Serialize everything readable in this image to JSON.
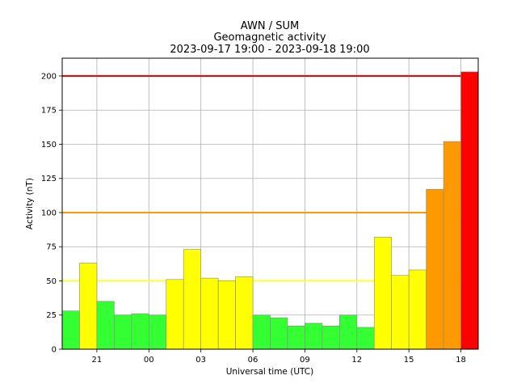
{
  "chart_data": {
    "type": "bar",
    "title_lines": [
      "AWN / SUM",
      "Geomagnetic activity",
      "2023-09-17 19:00 - 2023-09-18 19:00"
    ],
    "xlabel": "Universal time (UTC)",
    "ylabel": "Activity (nT)",
    "ylim": [
      0,
      213
    ],
    "xlim": [
      0,
      24
    ],
    "grid": true,
    "x_ticks": [
      {
        "pos": 2,
        "label": "21"
      },
      {
        "pos": 5,
        "label": "00"
      },
      {
        "pos": 8,
        "label": "03"
      },
      {
        "pos": 11,
        "label": "06"
      },
      {
        "pos": 14,
        "label": "09"
      },
      {
        "pos": 17,
        "label": "12"
      },
      {
        "pos": 20,
        "label": "15"
      },
      {
        "pos": 23,
        "label": "18"
      }
    ],
    "y_ticks": [
      0,
      25,
      50,
      75,
      100,
      125,
      150,
      175,
      200
    ],
    "values": [
      28,
      63,
      35,
      25,
      26,
      25,
      51,
      73,
      52,
      50,
      53,
      25,
      23,
      17,
      19,
      17,
      25,
      16,
      82,
      54,
      58,
      117,
      152,
      203
    ],
    "bar_colors": [
      "#33ff33",
      "#ffff00",
      "#33ff33",
      "#33ff33",
      "#33ff33",
      "#33ff33",
      "#ffff00",
      "#ffff00",
      "#ffff00",
      "#ffff00",
      "#ffff00",
      "#33ff33",
      "#33ff33",
      "#33ff33",
      "#33ff33",
      "#33ff33",
      "#33ff33",
      "#33ff33",
      "#ffff00",
      "#ffff00",
      "#ffff00",
      "#ff9900",
      "#ff9900",
      "#ff0000"
    ],
    "thresholds": [
      {
        "value": 50,
        "color": "#ffff33"
      },
      {
        "value": 100,
        "color": "#ff9900"
      },
      {
        "value": 200,
        "color": "#ff0000"
      }
    ]
  }
}
